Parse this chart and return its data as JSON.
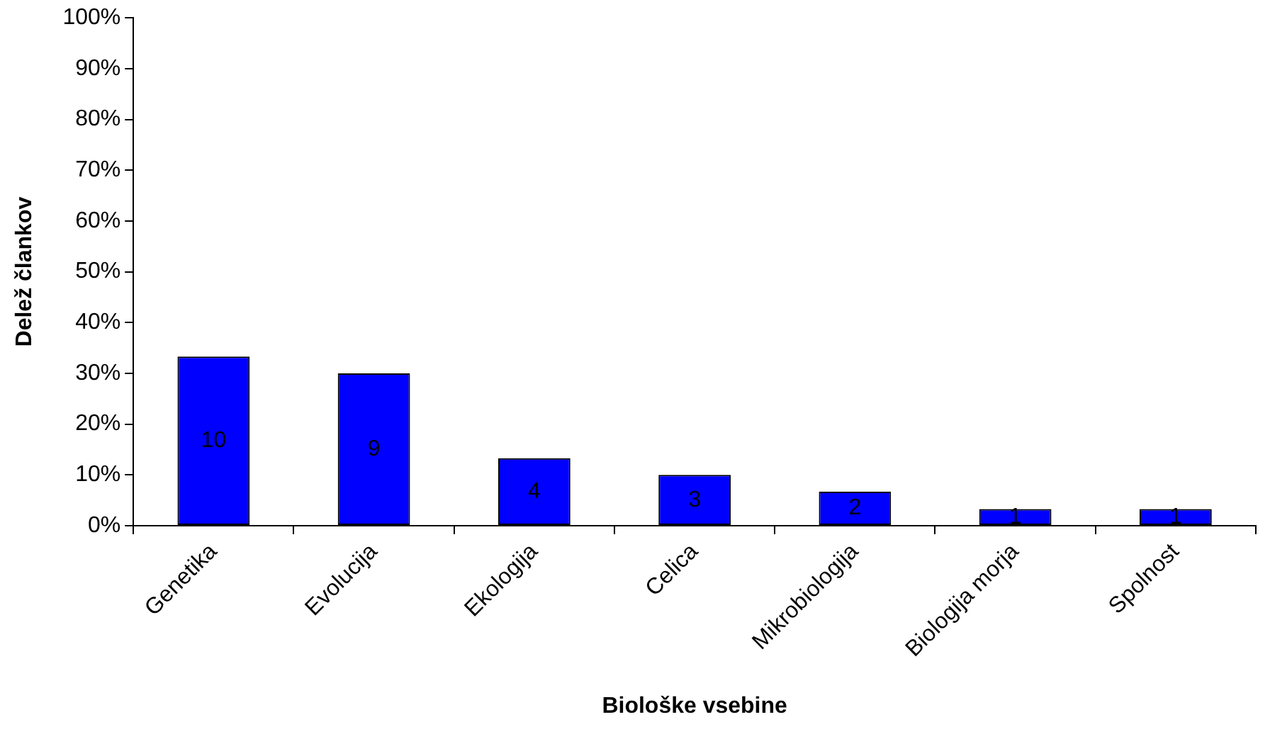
{
  "chart_data": {
    "type": "bar",
    "xlabel": "Biološke vsebine",
    "ylabel": "Delež člankov",
    "categories": [
      "Genetika",
      "Evolucija",
      "Ekologija",
      "Celica",
      "Mikrobiologija",
      "Biologija morja",
      "Spolnost"
    ],
    "values": [
      33.3,
      30,
      13.3,
      10,
      6.7,
      3.3,
      3.3
    ],
    "annotations": [
      "10",
      "9",
      "4",
      "3",
      "2",
      "1",
      "1"
    ],
    "color": "#0000ff",
    "ylim": [
      0,
      100
    ],
    "yticks": [
      {
        "value": 0,
        "label": "0%"
      },
      {
        "value": 10,
        "label": "10%"
      },
      {
        "value": 20,
        "label": "20%"
      },
      {
        "value": 30,
        "label": "30%"
      },
      {
        "value": 40,
        "label": "40%"
      },
      {
        "value": 50,
        "label": "50%"
      },
      {
        "value": 60,
        "label": "60%"
      },
      {
        "value": 70,
        "label": "70%"
      },
      {
        "value": 80,
        "label": "80%"
      },
      {
        "value": 90,
        "label": "90%"
      },
      {
        "value": 100,
        "label": "100%"
      }
    ],
    "grid": false,
    "legend": false
  }
}
